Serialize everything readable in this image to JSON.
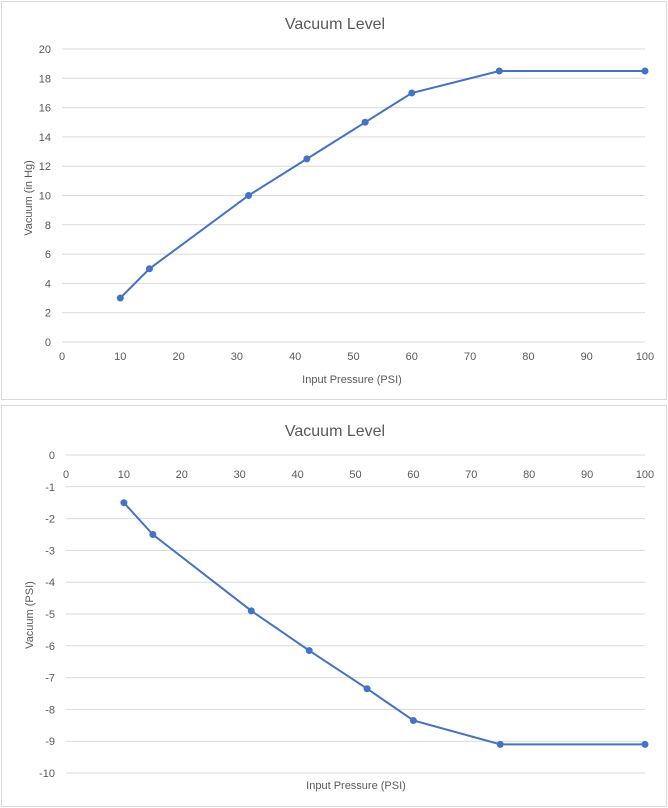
{
  "chart_data": [
    {
      "type": "line",
      "title": "Vacuum Level",
      "xlabel": "Input Pressure (PSI)",
      "ylabel": "Vacuum (in Hg)",
      "xlim": [
        0,
        100
      ],
      "ylim": [
        0,
        20
      ],
      "x_ticks": [
        0,
        10,
        20,
        30,
        40,
        50,
        60,
        70,
        80,
        90,
        100
      ],
      "y_ticks": [
        0,
        2,
        4,
        6,
        8,
        10,
        12,
        14,
        16,
        18,
        20
      ],
      "x_axis_position": "bottom",
      "grid": true,
      "series": [
        {
          "x": [
            10,
            15,
            32,
            42,
            52,
            60,
            75,
            100
          ],
          "y": [
            3,
            5,
            10,
            12.5,
            15,
            17,
            18.5,
            18.5
          ]
        }
      ]
    },
    {
      "type": "line",
      "title": "Vacuum Level",
      "xlabel": "Input Pressure (PSI)",
      "ylabel": "Vacuum (PSI)",
      "xlim": [
        0,
        100
      ],
      "ylim": [
        -10,
        0
      ],
      "x_ticks": [
        0,
        10,
        20,
        30,
        40,
        50,
        60,
        70,
        80,
        90,
        100
      ],
      "y_ticks": [
        0,
        -1,
        -2,
        -3,
        -4,
        -5,
        -6,
        -7,
        -8,
        -9,
        -10
      ],
      "x_axis_position": "top",
      "grid": true,
      "series": [
        {
          "x": [
            10,
            15,
            32,
            42,
            52,
            60,
            75,
            100
          ],
          "y": [
            -1.5,
            -2.5,
            -4.9,
            -6.15,
            -7.35,
            -8.35,
            -9.1,
            -9.1
          ]
        }
      ]
    }
  ],
  "colors": {
    "series": "#4472c4",
    "grid": "#d9d9d9",
    "text": "#595959",
    "border": "#d9d9d9"
  }
}
